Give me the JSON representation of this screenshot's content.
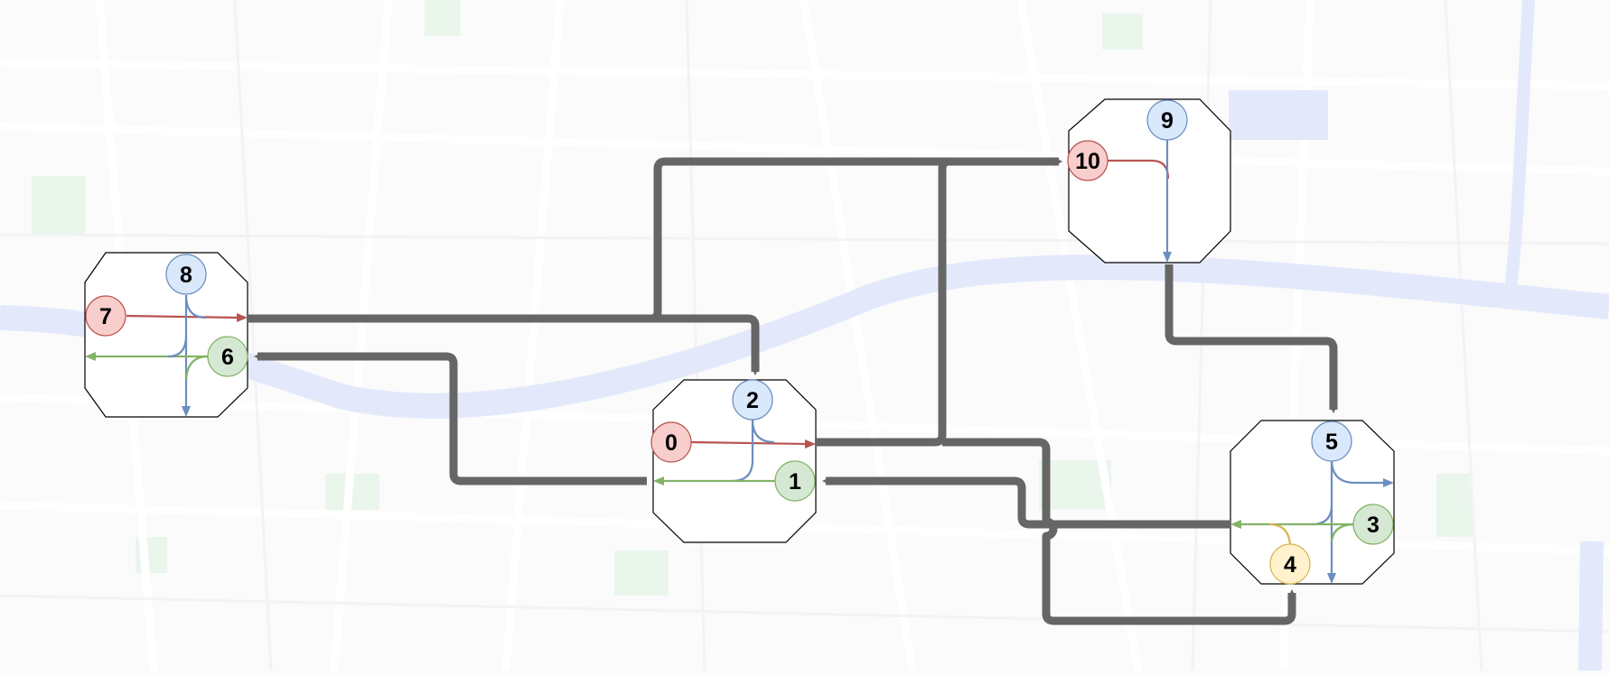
{
  "colors": {
    "map_background": "#fbfbfc",
    "river": "#e3e9fb",
    "park": "#e8f5ea",
    "street": "#ffffff",
    "link": "#666666",
    "red": "#b85450",
    "red_fill": "#f8cecc",
    "blue": "#6c8ebf",
    "blue_fill": "#dae8fc",
    "green": "#82b366",
    "green_fill": "#d5e8d4",
    "yellow": "#d6b656",
    "yellow_fill": "#fff2cc"
  },
  "intersections": [
    {
      "id": "A",
      "nodes": [
        {
          "label": "7",
          "color": "red"
        },
        {
          "label": "8",
          "color": "blue"
        },
        {
          "label": "6",
          "color": "green"
        }
      ]
    },
    {
      "id": "B",
      "nodes": [
        {
          "label": "0",
          "color": "red"
        },
        {
          "label": "2",
          "color": "blue"
        },
        {
          "label": "1",
          "color": "green"
        }
      ]
    },
    {
      "id": "C",
      "nodes": [
        {
          "label": "10",
          "color": "red"
        },
        {
          "label": "9",
          "color": "blue"
        }
      ]
    },
    {
      "id": "D",
      "nodes": [
        {
          "label": "5",
          "color": "blue"
        },
        {
          "label": "3",
          "color": "green"
        },
        {
          "label": "4",
          "color": "yellow"
        }
      ]
    }
  ],
  "links": [
    {
      "from": "7",
      "to": "2"
    },
    {
      "from": "7",
      "to": "10"
    },
    {
      "from": "0",
      "to": "10"
    },
    {
      "from": "0",
      "to": "4"
    },
    {
      "from": "1",
      "to": "6"
    },
    {
      "from": "3",
      "to": "1"
    },
    {
      "from": "9",
      "to": "5"
    }
  ]
}
